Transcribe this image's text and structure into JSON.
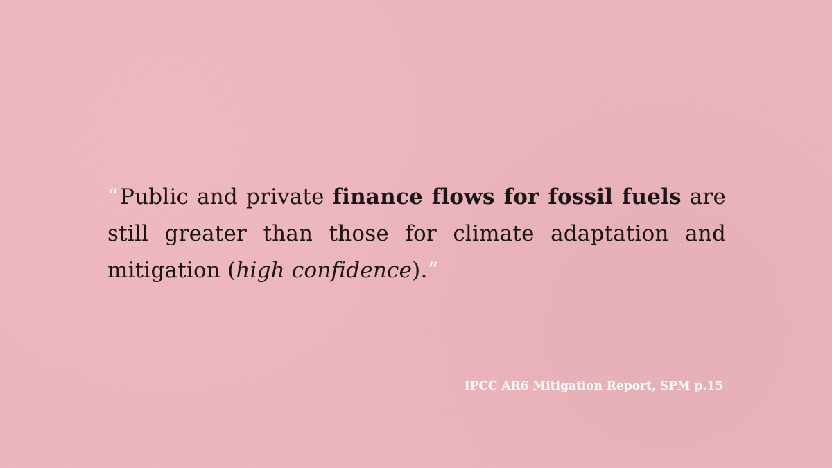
{
  "quote": {
    "open_mark": "“",
    "text_1": "Public and private ",
    "text_bold": "finance flows for fossil fuels",
    "text_2": " are still greater than those for climate adaptation and mitigation (",
    "text_italic": "high confidence",
    "text_3": ").",
    "close_mark": "”"
  },
  "source": "IPCC AR6 Mitigation Report, SPM p.15",
  "colors": {
    "background": "#eeb5bd",
    "text": "#1a1516",
    "accent": "#ffffff"
  }
}
